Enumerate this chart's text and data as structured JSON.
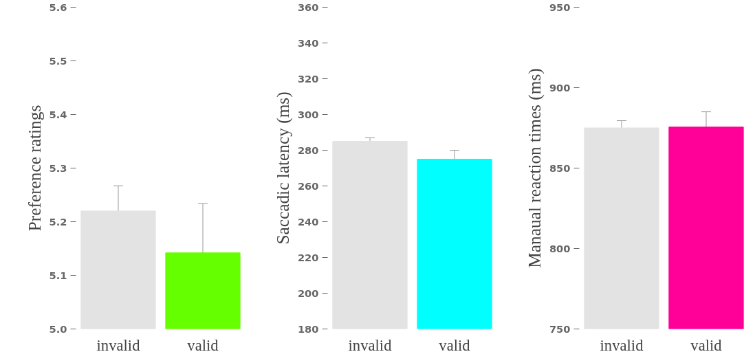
{
  "chart_data": [
    {
      "type": "bar",
      "ylabel": "Preference ratings",
      "categories": [
        "invalid",
        "valid"
      ],
      "values": [
        5.22,
        5.142
      ],
      "errors": [
        0.047,
        0.092
      ],
      "colors": [
        "#e3e3e3",
        "#66ff00"
      ],
      "ylim": [
        5.0,
        5.6
      ],
      "yticks": [
        {
          "value": 5.0,
          "label": "5.0"
        },
        5.1,
        5.2,
        5.3,
        5.4,
        5.5,
        5.6
      ]
    },
    {
      "type": "bar",
      "ylabel": "Saccadic latency (ms)",
      "categories": [
        "invalid",
        "valid"
      ],
      "values": [
        285,
        275
      ],
      "errors": [
        2,
        5
      ],
      "colors": [
        "#e3e3e3",
        "#00ffff"
      ],
      "ylim": [
        180,
        360
      ],
      "yticks": [
        180,
        200,
        220,
        240,
        260,
        280,
        300,
        320,
        340,
        360
      ]
    },
    {
      "type": "bar",
      "ylabel": "Manaual reaction times (ms)",
      "categories": [
        "invalid",
        "valid"
      ],
      "values": [
        875,
        875.5
      ],
      "errors": [
        4.5,
        9.5
      ],
      "colors": [
        "#e3e3e3",
        "#ff0099"
      ],
      "ylim": [
        750,
        950
      ],
      "yticks": [
        750,
        800,
        850,
        900,
        950
      ]
    }
  ]
}
